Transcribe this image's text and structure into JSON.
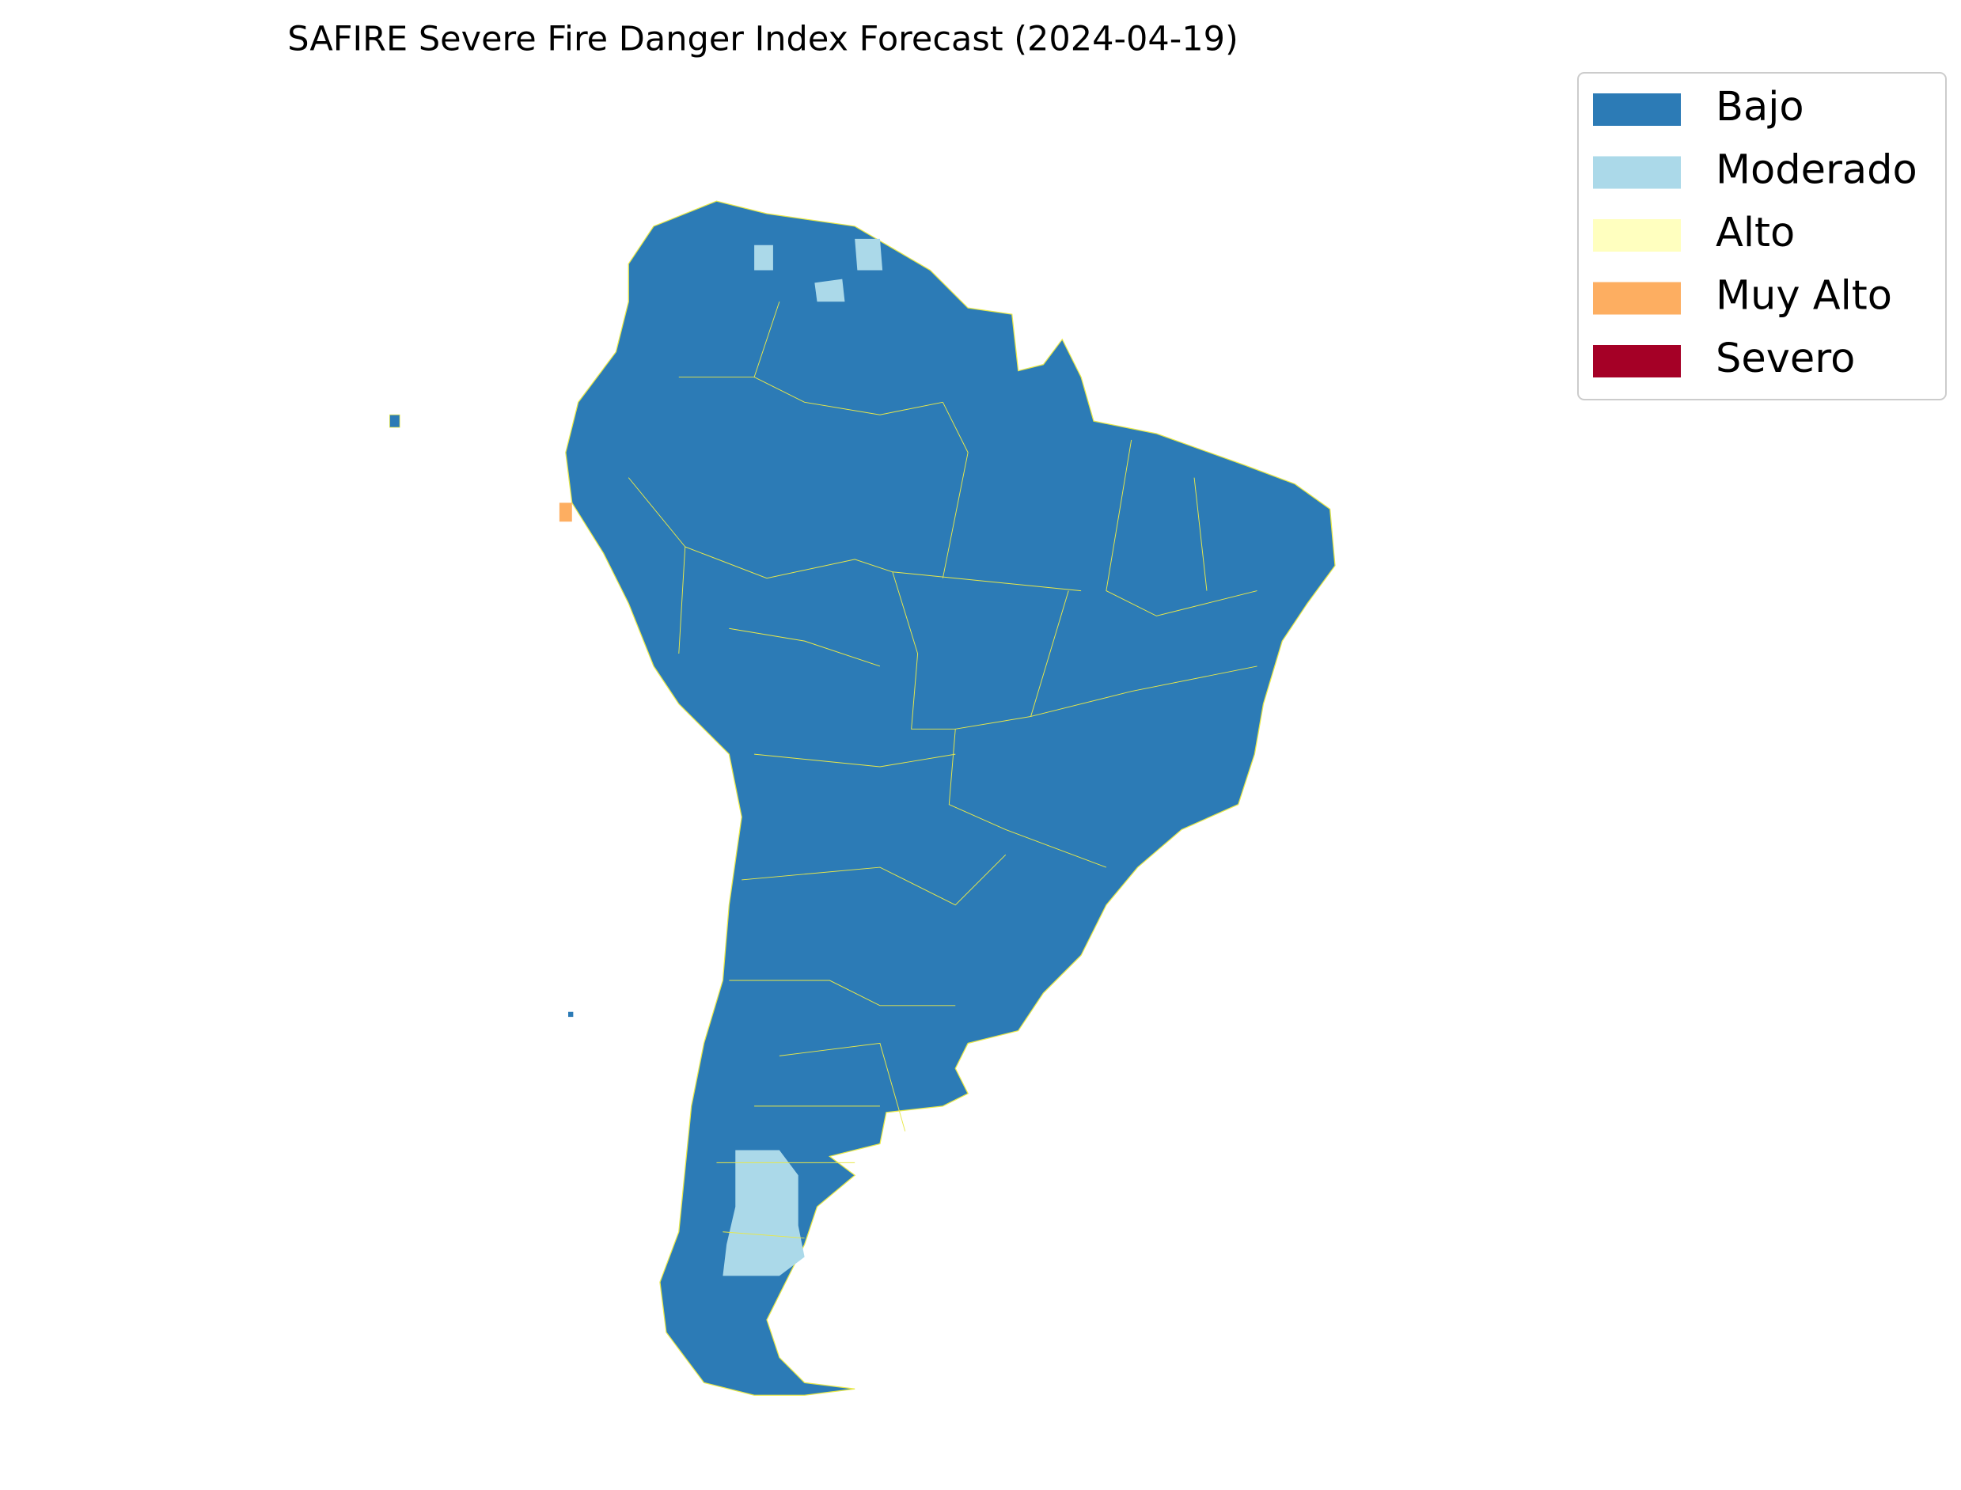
{
  "title": "SAFIRE Severe Fire Danger Index Forecast (2024-04-19)",
  "legend": [
    {
      "label": "Bajo",
      "color": "#2c7bb6"
    },
    {
      "label": "Moderado",
      "color": "#abd9e9"
    },
    {
      "label": "Alto",
      "color": "#ffffbf"
    },
    {
      "label": "Muy Alto",
      "color": "#fdae61"
    },
    {
      "label": "Severo",
      "color": "#a50026"
    }
  ]
}
